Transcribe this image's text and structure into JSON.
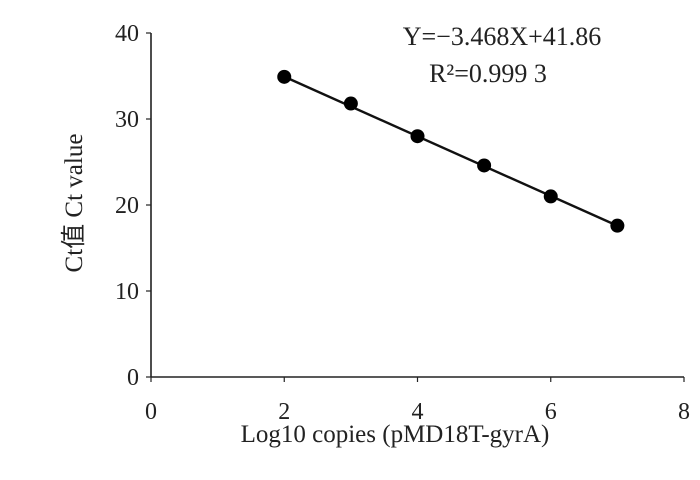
{
  "chart_data": {
    "type": "scatter",
    "xlabel": "Log10 copies (pMD18T-gyrA)",
    "ylabel": "Ct值 Ct value",
    "xlim": [
      0,
      8
    ],
    "ylim": [
      0,
      40
    ],
    "x_ticks": [
      0,
      2,
      4,
      6,
      8
    ],
    "y_ticks": [
      0,
      10,
      20,
      30,
      40
    ],
    "grid": false,
    "series": [
      {
        "x": [
          2,
          3,
          4,
          5,
          6,
          7
        ],
        "y": [
          34.9,
          31.8,
          28.0,
          24.6,
          21.0,
          17.6
        ]
      }
    ],
    "fit_line": {
      "slope": -3.468,
      "intercept": 41.86,
      "x_range": [
        2,
        7
      ]
    },
    "annotations": [
      "Y=−3.468X+41.86",
      "R²=0.999 3"
    ]
  }
}
